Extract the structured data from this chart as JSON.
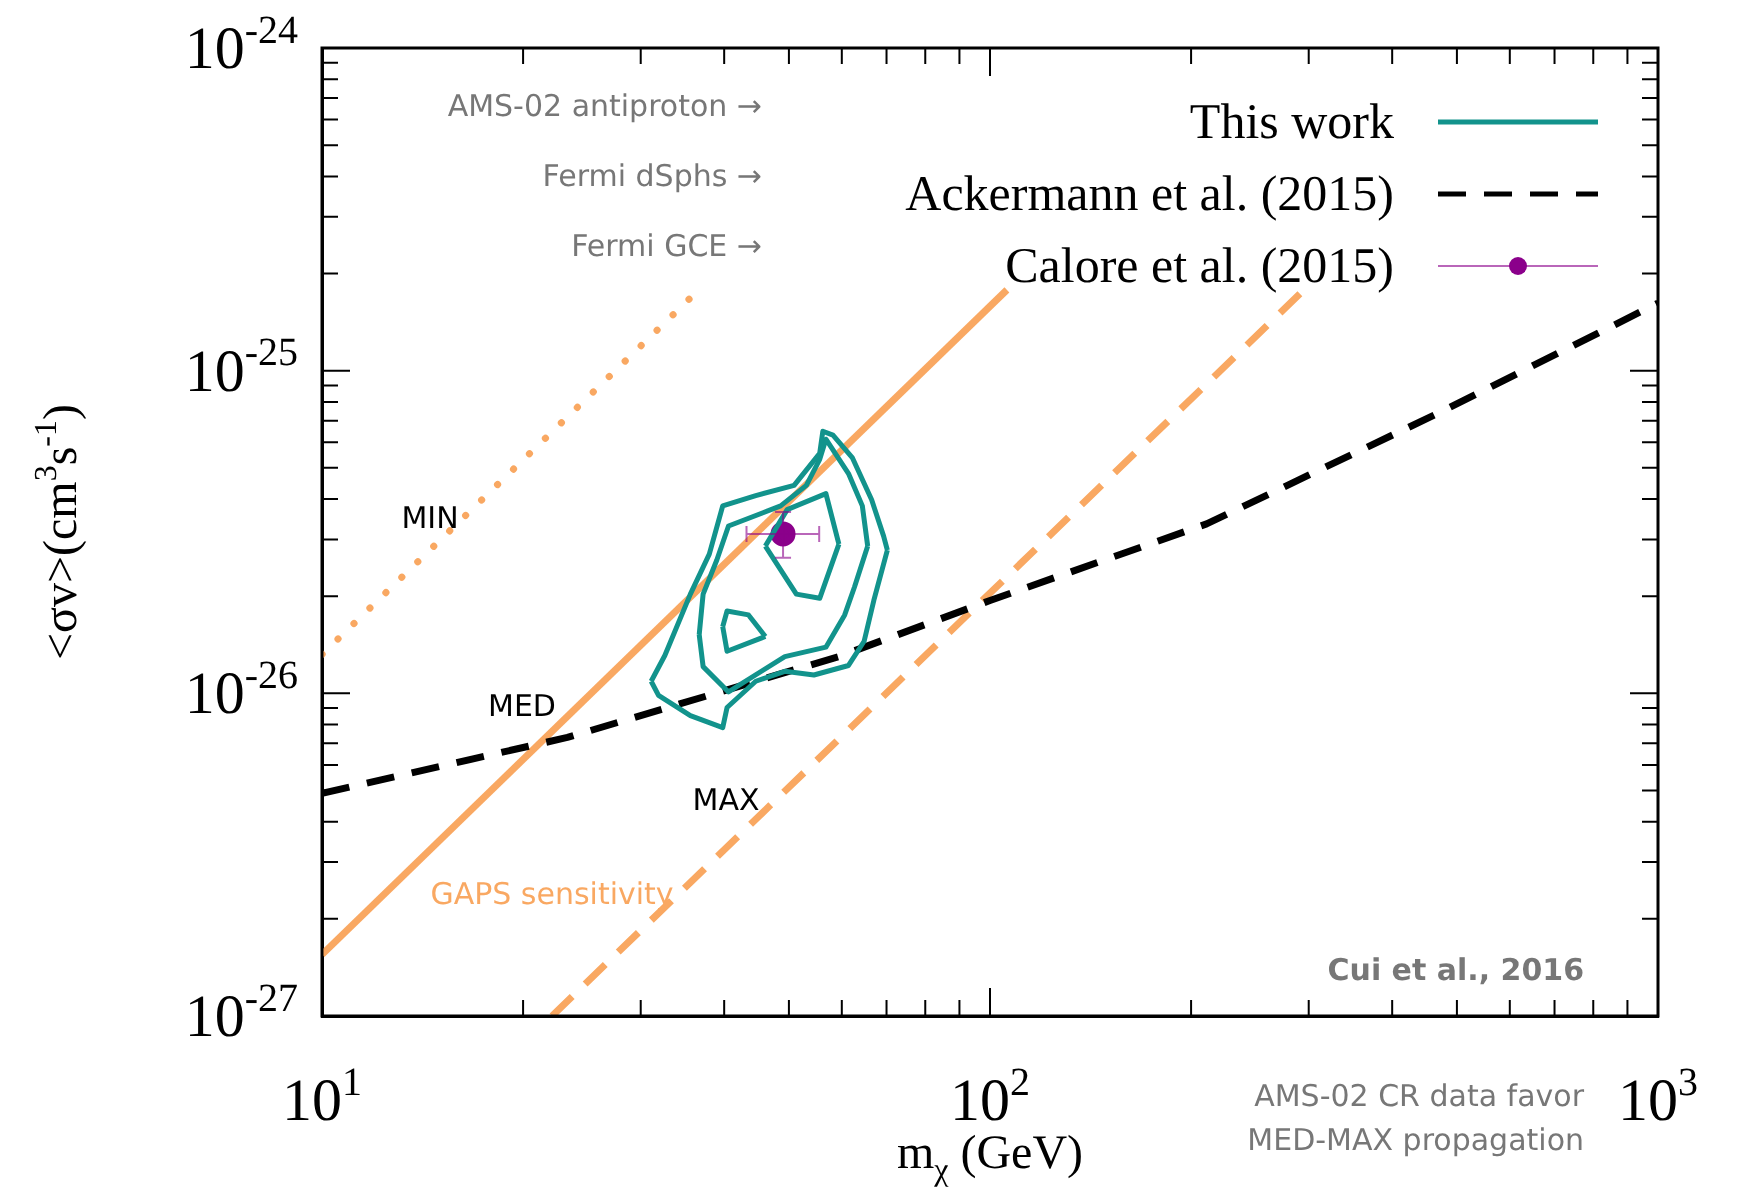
{
  "chart_data": {
    "type": "line",
    "log": "xy",
    "grid": false,
    "legend": "top right",
    "marker": "none",
    "xlabel": "m$_{χ}$ (GeV)",
    "ylabel": "<σv>(cm$^{3}$s$^{-1}$)",
    "xlim": [
      10,
      1000
    ],
    "ylim": [
      1e-27,
      1e-24
    ],
    "xticks": [
      {
        "value": 10,
        "label": "10$^{1}$"
      },
      {
        "value": 20,
        "label": null
      },
      {
        "value": 30,
        "label": null
      },
      {
        "value": 40,
        "label": null
      },
      {
        "value": 50,
        "label": null
      },
      {
        "value": 60,
        "label": null
      },
      {
        "value": 70,
        "label": null
      },
      {
        "value": 80,
        "label": null
      },
      {
        "value": 90,
        "label": null
      },
      {
        "value": 100,
        "label": "10$^{2}$"
      },
      {
        "value": 200,
        "label": null
      },
      {
        "value": 300,
        "label": null
      },
      {
        "value": 400,
        "label": null
      },
      {
        "value": 500,
        "label": null
      },
      {
        "value": 600,
        "label": null
      },
      {
        "value": 700,
        "label": null
      },
      {
        "value": 800,
        "label": null
      },
      {
        "value": 900,
        "label": null
      },
      {
        "value": 1000,
        "label": "10$^{3}$"
      }
    ],
    "yticks": [
      {
        "value": 1e-27,
        "label": "10$^{-27}$"
      },
      {
        "value": 2e-27,
        "label": null
      },
      {
        "value": 3e-27,
        "label": null
      },
      {
        "value": 4e-27,
        "label": null
      },
      {
        "value": 5e-27,
        "label": null
      },
      {
        "value": 6e-27,
        "label": null
      },
      {
        "value": 7e-27,
        "label": null
      },
      {
        "value": 8e-27,
        "label": null
      },
      {
        "value": 9e-27,
        "label": null
      },
      {
        "value": 1e-26,
        "label": "10$^{-26}$"
      },
      {
        "value": 2e-26,
        "label": null
      },
      {
        "value": 3e-26,
        "label": null
      },
      {
        "value": 4e-26,
        "label": null
      },
      {
        "value": 5e-26,
        "label": null
      },
      {
        "value": 6e-26,
        "label": null
      },
      {
        "value": 7e-26,
        "label": null
      },
      {
        "value": 8e-26,
        "label": null
      },
      {
        "value": 9e-26,
        "label": null
      },
      {
        "value": 1e-25,
        "label": "10$^{-25}$"
      },
      {
        "value": 2e-25,
        "label": null
      },
      {
        "value": 3e-25,
        "label": null
      },
      {
        "value": 4e-25,
        "label": null
      },
      {
        "value": 5e-25,
        "label": null
      },
      {
        "value": 6e-25,
        "label": null
      },
      {
        "value": 7e-25,
        "label": null
      },
      {
        "value": 8e-25,
        "label": null
      },
      {
        "value": 9e-25,
        "label": null
      },
      {
        "value": 1e-24,
        "label": "10$^{-24}$"
      }
    ],
    "series": [
      {
        "name": "This work",
        "color": "#12938c",
        "line_style": "solid",
        "x": [
          31.1,
          32.6,
          35.6,
          38.0,
          39.8,
          44.6,
          50.9,
          55.6,
          56.2,
          58.2,
          62.2,
          66.5,
          69.3,
          70.2,
          null,
          31.1,
          31.9,
          35.6,
          39.8,
          40.4,
          44.6,
          49.3,
          54.5,
          61.4,
          64.8,
          67.0,
          70.2
        ],
        "values": [
          1.09e-26,
          1.31e-26,
          2.03e-26,
          2.7e-26,
          3.81e-26,
          4.1e-26,
          4.41e-26,
          5.54e-26,
          6.49e-26,
          6.31e-26,
          5.38e-26,
          3.98e-26,
          3.07e-26,
          2.78e-26,
          null,
          1.09e-26,
          9.86e-27,
          8.53e-27,
          7.83e-27,
          9.04e-27,
          1.09e-26,
          1.17e-26,
          1.14e-26,
          1.22e-26,
          1.45e-26,
          1.94e-26,
          2.78e-26
        ]
      },
      {
        "color": "#12938c",
        "line_style": "solid",
        "x": [
          36.7,
          37.2,
          39.0,
          40.6,
          48.6,
          53.1,
          55.6,
          56.8,
          61.4,
          64.4,
          65.6,
          null,
          36.7,
          37.2,
          40.6,
          49.3,
          56.8,
          60.6,
          62.7,
          65.6
        ],
        "values": [
          1.52e-26,
          2.03e-26,
          2.59e-26,
          3.3e-26,
          3.81e-26,
          4.41e-26,
          5.31e-26,
          6.13e-26,
          4.8e-26,
          3.81e-26,
          2.86e-26,
          null,
          1.52e-26,
          1.21e-26,
          1.01e-26,
          1.3e-26,
          1.39e-26,
          1.75e-26,
          2.14e-26,
          2.86e-26
        ]
      },
      {
        "color": "#12938c",
        "line_style": "solid",
        "x": [
          46.1,
          49.7,
          56.8,
          59.4,
          null,
          46.1,
          51.3,
          55.6,
          59.4
        ],
        "values": [
          2.86e-26,
          3.71e-26,
          4.16e-26,
          2.9e-26,
          null,
          2.86e-26,
          2.03e-26,
          1.97e-26,
          2.9e-26
        ]
      },
      {
        "color": "#12938c",
        "line_style": "solid",
        "x": [
          39.8,
          40.4,
          43.5,
          46.1,
          null,
          39.8,
          40.4,
          46.1
        ],
        "values": [
          1.61e-26,
          1.8e-26,
          1.75e-26,
          1.5e-26,
          null,
          1.61e-26,
          1.35e-26,
          1.5e-26
        ]
      },
      {
        "name": "Ackermann et al. (2015)",
        "color": "#000000",
        "line_style": "dashed",
        "x": [
          10,
          23.3,
          59.4,
          100,
          211,
          470,
          1000
        ],
        "values": [
          4.9e-27,
          7.3e-27,
          1.3e-26,
          1.94e-26,
          3.35e-26,
          7.4e-26,
          1.62e-25
        ]
      },
      {
        "name": "Calore et al. (2015)",
        "type": "scatter",
        "marker": "circle",
        "color": "#8b008b",
        "x": [
          49
        ],
        "values": [
          3.12e-26
        ],
        "errors": [
          [
            2.63e-26,
            3.65e-26
          ]
        ],
        "xerrors": [
          [
            43.2,
            55.5
          ]
        ]
      },
      {
        "color": "#f9a862",
        "line_style": "dotted",
        "x": [
          10,
          35.6
        ],
        "values": [
          1.32e-26,
          1.68e-25
        ]
      },
      {
        "color": "#f9a862",
        "line_style": "solid",
        "x": [
          10,
          106
        ],
        "values": [
          1.55e-27,
          1.78e-25
        ]
      },
      {
        "color": "#f9a862",
        "line_style": "dashed",
        "x": [
          22.1,
          291
        ],
        "values": [
          1e-27,
          1.73e-25
        ]
      }
    ],
    "annotations": [
      "AMS-02 antiproton →",
      "Fermi dSphs →",
      "Fermi GCE →",
      "MIN",
      "MED",
      "MAX",
      "GAPS sensitivity",
      "Cui et al., 2016",
      "AMS-02 CR data favor\nMED-MAX propagation"
    ]
  }
}
